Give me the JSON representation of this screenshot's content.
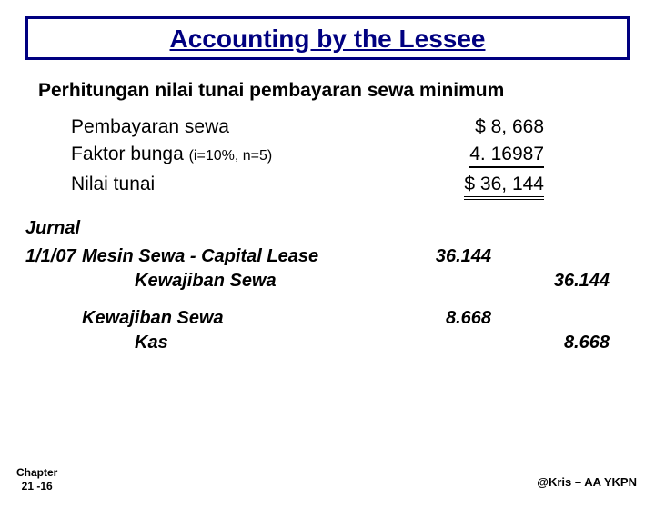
{
  "title": "Accounting by the Lessee",
  "subtitle": "Perhitungan nilai tunai pembayaran sewa minimum",
  "calc": {
    "rows": [
      {
        "label": "Pembayaran sewa",
        "sublabel": "",
        "value": "$  8, 668",
        "style": "none"
      },
      {
        "label": "Faktor bunga ",
        "sublabel": "(i=10%, n=5)",
        "value": "4. 16987",
        "style": "single"
      },
      {
        "label": "Nilai tunai",
        "sublabel": "",
        "value": "$ 36, 144",
        "style": "double"
      }
    ]
  },
  "journal_heading": "Jurnal",
  "journal": [
    {
      "date": "1/1/07",
      "account": "Mesin Sewa - Capital Lease",
      "dr": "36.144",
      "cr": "",
      "indent": false
    },
    {
      "date": "",
      "account": "Kewajiban Sewa",
      "dr": "",
      "cr": "36.144",
      "indent": true
    },
    {
      "gap": true
    },
    {
      "date": "",
      "account": "Kewajiban Sewa",
      "dr": "8.668",
      "cr": "",
      "indent": false
    },
    {
      "date": "",
      "account": "Kas",
      "dr": "",
      "cr": "8.668",
      "indent": true
    }
  ],
  "footer": {
    "chapter_l1": "Chapter",
    "chapter_l2": "21 -16",
    "credit": "@Kris – AA YKPN"
  },
  "colors": {
    "title_border": "#000080",
    "title_text": "#000080",
    "body_text": "#000000",
    "background": "#ffffff"
  }
}
